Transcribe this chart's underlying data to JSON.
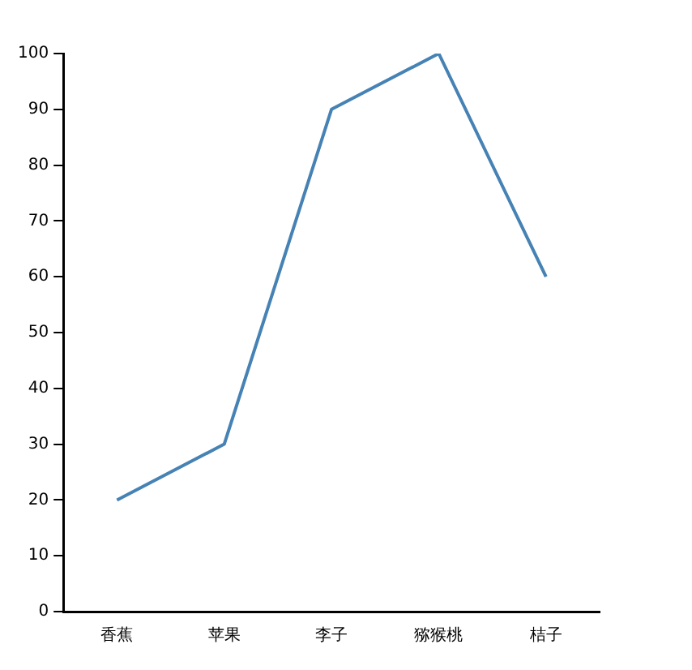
{
  "chart_data": {
    "type": "line",
    "categories": [
      "香蕉",
      "苹果",
      "李子",
      "猕猴桃",
      "桔子"
    ],
    "series": [
      {
        "color": "#4682b4",
        "values": [
          20,
          30,
          90,
          100,
          60
        ]
      }
    ],
    "ylim": [
      0,
      100
    ],
    "yticks": [
      0,
      10,
      20,
      30,
      40,
      50,
      60,
      70,
      80,
      90,
      100
    ],
    "grid": false,
    "legend": false,
    "marker": "none",
    "line_style": "solid"
  }
}
